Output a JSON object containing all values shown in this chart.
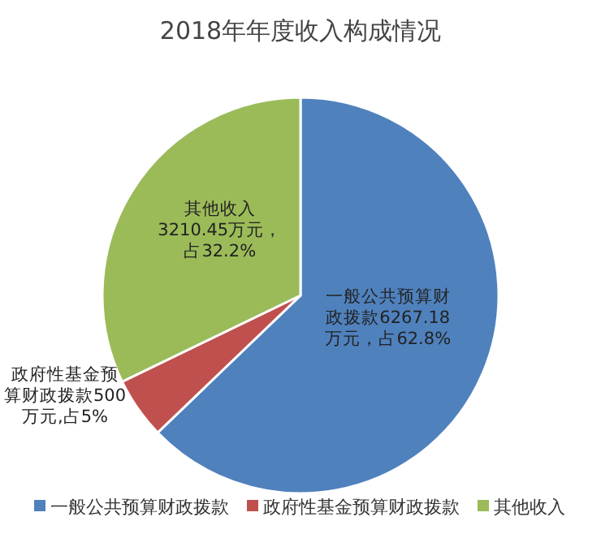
{
  "chart_data": {
    "type": "pie",
    "title": "2018年年度收入构成情况",
    "categories": [
      "一般公共预算财政拨款",
      "政府性基金预算财政拨款",
      "其他收入"
    ],
    "values": [
      6267.18,
      500,
      3210.45
    ],
    "colors": [
      "#4f81bd",
      "#c0504d",
      "#9bbb59"
    ],
    "value_labels": [
      "一般公共预算财政拨款6267.18万元，占62.8%",
      "政府性基金预算财政拨款500万元,占5%",
      "其他收入3210.45万元，占32.2%"
    ],
    "legend": "bottom"
  }
}
